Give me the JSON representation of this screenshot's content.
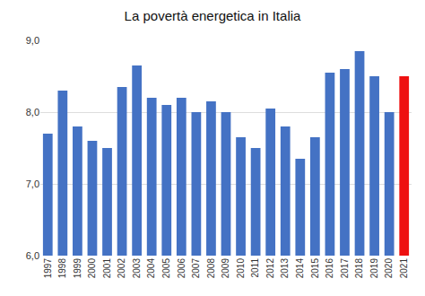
{
  "chart_data": {
    "type": "bar",
    "title": "La povertà energetica in Italia",
    "categories": [
      "1997",
      "1998",
      "1999",
      "2000",
      "2001",
      "2002",
      "2003",
      "2004",
      "2005",
      "2006",
      "2007",
      "2008",
      "2009",
      "2010",
      "2011",
      "2012",
      "2013",
      "2014",
      "2015",
      "2016",
      "2017",
      "2018",
      "2019",
      "2020",
      "2021"
    ],
    "values": [
      7.7,
      8.3,
      7.8,
      7.6,
      7.5,
      8.35,
      8.65,
      8.2,
      8.1,
      8.2,
      8.0,
      8.15,
      8.0,
      7.65,
      7.5,
      8.05,
      7.8,
      7.35,
      7.65,
      8.55,
      8.6,
      8.85,
      8.5,
      8.0,
      8.5
    ],
    "colors": [
      "#4472C4",
      "#4472C4",
      "#4472C4",
      "#4472C4",
      "#4472C4",
      "#4472C4",
      "#4472C4",
      "#4472C4",
      "#4472C4",
      "#4472C4",
      "#4472C4",
      "#4472C4",
      "#4472C4",
      "#4472C4",
      "#4472C4",
      "#4472C4",
      "#4472C4",
      "#4472C4",
      "#4472C4",
      "#4472C4",
      "#4472C4",
      "#4472C4",
      "#4472C4",
      "#4472C4",
      "#EE1111"
    ],
    "ylim": [
      6.0,
      9.0
    ],
    "yticks": [
      {
        "value": 6.0,
        "label": "6,0"
      },
      {
        "value": 7.0,
        "label": "7,0"
      },
      {
        "value": 8.0,
        "label": "8,0"
      },
      {
        "value": 9.0,
        "label": "9,0"
      }
    ],
    "grid": true
  }
}
